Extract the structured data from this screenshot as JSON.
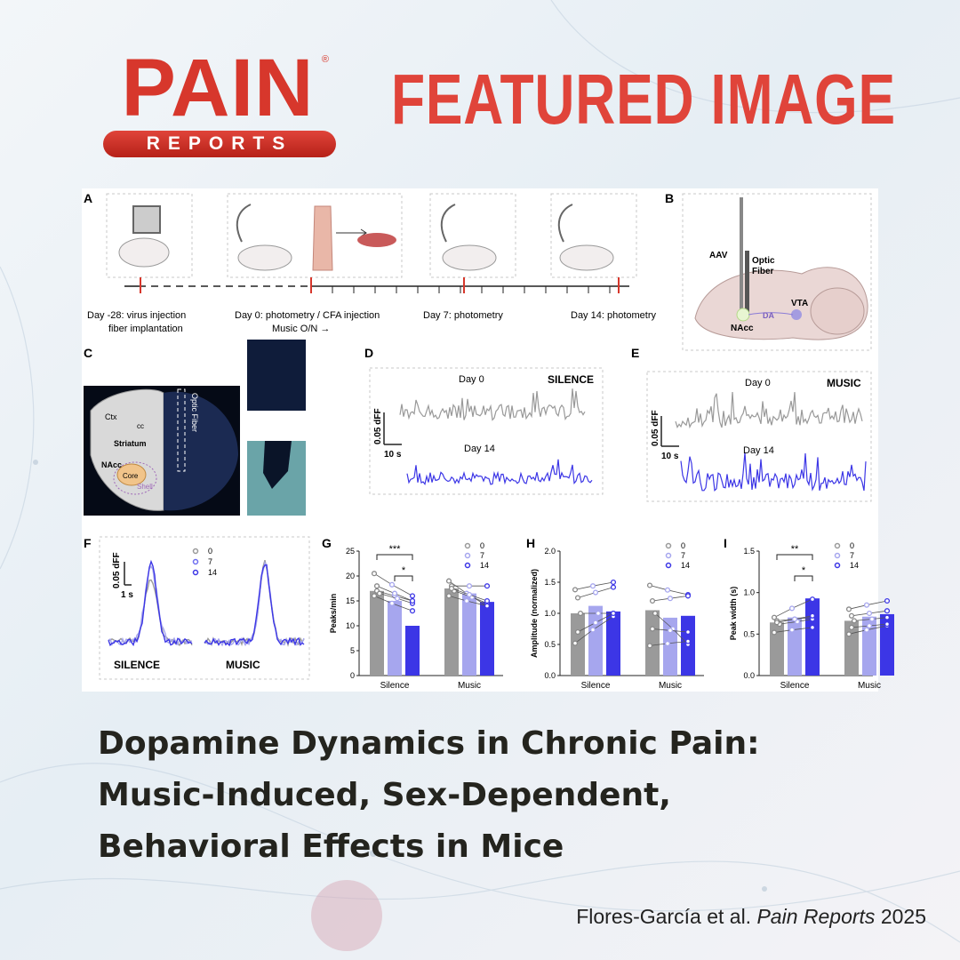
{
  "header": {
    "logo_main": "PAIN",
    "logo_sub": "REPORTS",
    "logo_reg": "®",
    "headline": "FEATURED IMAGE"
  },
  "colors": {
    "brand_red": "#e0443a",
    "gray": "#9a9a9a",
    "blue_light": "#a6a6ee",
    "blue_mid": "#6d6df0",
    "blue_dark": "#3c36e6"
  },
  "figure": {
    "panel_letters": [
      "A",
      "B",
      "C",
      "D",
      "E",
      "F",
      "G",
      "H",
      "I"
    ],
    "panel_a": {
      "timeline_labels": [
        {
          "line1": "Day -28: virus injection",
          "line2": "fiber implantation"
        },
        {
          "line1": "Day 0: photometry / CFA injection",
          "line2": "Music O/N →"
        },
        {
          "line1": "Day 7: photometry",
          "line2": ""
        },
        {
          "line1": "Day 14: photometry",
          "line2": ""
        }
      ]
    },
    "panel_b": {
      "labels": [
        "AAV",
        "Optic",
        "Fiber",
        "VTA",
        "DA",
        "NAcc"
      ]
    },
    "panel_c": {
      "labels": [
        "Ctx",
        "cc",
        "Striatum",
        "NAcc",
        "Core",
        "Shell",
        "Optic Fiber"
      ]
    },
    "panel_d": {
      "condition": "SILENCE",
      "day_top": "Day 0",
      "day_bottom": "Day 14",
      "scale_y": "0.05 dFF",
      "scale_x": "10 s"
    },
    "panel_e": {
      "condition": "MUSIC",
      "day_top": "Day 0",
      "day_bottom": "Day 14",
      "scale_y": "0.05 dFF",
      "scale_x": "10 s"
    },
    "panel_f": {
      "scale_y": "0.05 dFF",
      "scale_x": "1 s",
      "legend": [
        "0",
        "7",
        "14"
      ],
      "labels": [
        "SILENCE",
        "MUSIC"
      ]
    }
  },
  "chart_data": [
    {
      "panel": "G",
      "type": "bar",
      "ylabel": "Peaks/min",
      "ylim": [
        0,
        25
      ],
      "yticks": [
        0,
        5,
        10,
        15,
        20,
        25
      ],
      "categories": [
        "Silence",
        "Music"
      ],
      "legend": [
        "0",
        "7",
        "14"
      ],
      "series": [
        {
          "name": "0",
          "values": [
            17,
            17.5
          ]
        },
        {
          "name": "7",
          "values": [
            15,
            16.5
          ]
        },
        {
          "name": "14",
          "values": [
            10,
            14.8
          ]
        }
      ],
      "points": {
        "Silence": [
          [
            20.5,
            16
          ],
          [
            17,
            15
          ],
          [
            16.5,
            14.5
          ],
          [
            16,
            13
          ],
          [
            18,
            15
          ]
        ],
        "Music": [
          [
            19,
            14
          ],
          [
            18,
            18
          ],
          [
            17,
            14.5
          ],
          [
            16,
            14
          ],
          [
            17.5,
            15
          ]
        ]
      },
      "significance": [
        {
          "label": "***",
          "from": 0,
          "to": 2
        },
        {
          "label": "*",
          "from": 1,
          "to": 2
        }
      ]
    },
    {
      "panel": "H",
      "type": "bar",
      "ylabel": "Amplitude (normalized)",
      "ylim": [
        0.0,
        2.0
      ],
      "yticks": [
        "0.0",
        "0.5",
        "1.0",
        "1.5",
        "2.0"
      ],
      "categories": [
        "Silence",
        "Music"
      ],
      "legend": [
        "0",
        "7",
        "14"
      ],
      "series": [
        {
          "name": "0",
          "values": [
            1.0,
            1.05
          ]
        },
        {
          "name": "7",
          "values": [
            1.12,
            0.93
          ]
        },
        {
          "name": "14",
          "values": [
            1.03,
            0.96
          ]
        }
      ],
      "points": {
        "Silence": [
          [
            1.38,
            1.5
          ],
          [
            1.25,
            1.42
          ],
          [
            1.0,
            1.0
          ],
          [
            0.52,
            0.95
          ],
          [
            0.7,
            1.0
          ]
        ],
        "Music": [
          [
            1.45,
            1.3
          ],
          [
            1.2,
            1.28
          ],
          [
            1.0,
            0.5
          ],
          [
            0.48,
            0.55
          ],
          [
            0.75,
            0.7
          ]
        ]
      },
      "significance": []
    },
    {
      "panel": "I",
      "type": "bar",
      "ylabel": "Peak width (s)",
      "ylim": [
        0.0,
        1.5
      ],
      "yticks": [
        "0.0",
        "0.5",
        "1.0",
        "1.5"
      ],
      "categories": [
        "Silence",
        "Music"
      ],
      "legend": [
        "0",
        "7",
        "14"
      ],
      "series": [
        {
          "name": "0",
          "values": [
            0.64,
            0.66
          ]
        },
        {
          "name": "7",
          "values": [
            0.7,
            0.71
          ]
        },
        {
          "name": "14",
          "values": [
            0.93,
            0.74
          ]
        }
      ],
      "points": {
        "Silence": [
          [
            0.7,
            0.92
          ],
          [
            0.66,
            0.7
          ],
          [
            0.62,
            0.68
          ],
          [
            0.52,
            0.58
          ],
          [
            0.64,
            0.72
          ]
        ],
        "Music": [
          [
            0.8,
            0.9
          ],
          [
            0.72,
            0.78
          ],
          [
            0.66,
            0.7
          ],
          [
            0.5,
            0.6
          ],
          [
            0.58,
            0.62
          ]
        ]
      },
      "significance": [
        {
          "label": "**",
          "from": 0,
          "to": 2
        },
        {
          "label": "*",
          "from": 1,
          "to": 2
        }
      ]
    }
  ],
  "title": {
    "line1": "Dopamine Dynamics in Chronic Pain:",
    "line2": "Music-Induced, Sex-Dependent,",
    "line3": "Behavioral Effects in Mice"
  },
  "citation": {
    "authors": "Flores-García et al.",
    "journal": "Pain Reports",
    "year": "2025"
  }
}
